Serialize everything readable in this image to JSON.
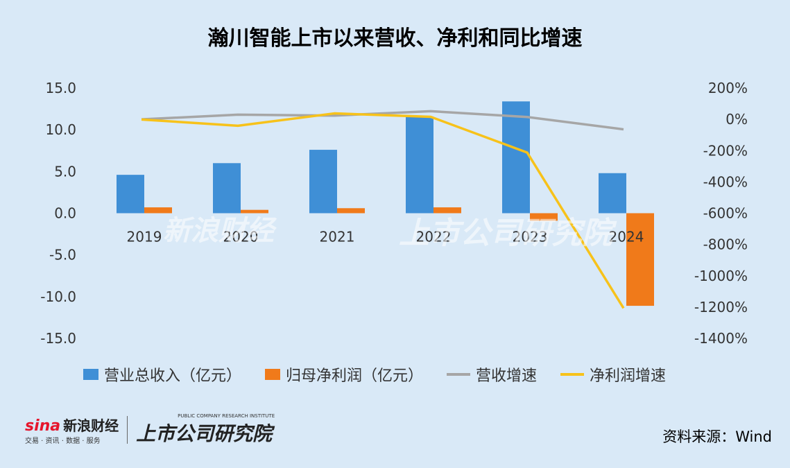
{
  "title": "瀚川智能上市以来营收、净利和同比增速",
  "source": "资料来源：Wind",
  "watermark": {
    "brand": "新浪财经",
    "brand_sub": "交易 · 资讯 · 数据 · 服务",
    "institute": "上市公司研究院",
    "institute_sub": "PUBLIC COMPANY RESEARCH INSTITUTE",
    "sina": "sina"
  },
  "colors": {
    "revenue": "#3f8fd6",
    "profit": "#f07a1a",
    "revenue_growth": "#a6a6a6",
    "profit_growth": "#f7c21a",
    "background": "#d9e9f7"
  },
  "chart_data": {
    "type": "bar",
    "categories": [
      "2019",
      "2020",
      "2021",
      "2022",
      "2023",
      "2024"
    ],
    "series": [
      {
        "name": "营业总收入（亿元）",
        "type": "bar",
        "axis": "left",
        "values": [
          4.6,
          6.0,
          7.6,
          11.6,
          13.4,
          4.8
        ]
      },
      {
        "name": "归母净利润（亿元）",
        "type": "bar",
        "axis": "left",
        "values": [
          0.7,
          0.4,
          0.6,
          0.7,
          -0.9,
          -11.1
        ]
      },
      {
        "name": "营收增速",
        "type": "line",
        "axis": "right",
        "values": [
          0,
          30,
          24,
          52,
          15,
          -64
        ]
      },
      {
        "name": "净利润增速",
        "type": "line",
        "axis": "right",
        "values": [
          -1,
          -41,
          38,
          16,
          -212,
          -1207
        ]
      }
    ],
    "y_left": {
      "ylim": [
        -15,
        15
      ],
      "ticks": [
        "15.0",
        "10.0",
        "5.0",
        "0.0",
        "-5.0",
        "-10.0",
        "-15.0"
      ]
    },
    "y_right": {
      "ylim": [
        -1400,
        200
      ],
      "ticks": [
        "200%",
        "0%",
        "-200%",
        "-400%",
        "-600%",
        "-800%",
        "-1000%",
        "-1200%",
        "-1400%"
      ]
    },
    "legend": "bottom",
    "grid": false
  }
}
